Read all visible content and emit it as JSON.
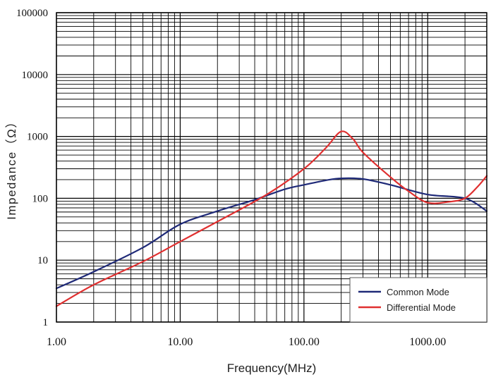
{
  "chart_data": {
    "type": "line",
    "title": "",
    "xlabel": "Frequency(MHz)",
    "ylabel": "Impedance（Ω）",
    "x_scale": "log",
    "y_scale": "log",
    "xlim": [
      1,
      3000
    ],
    "ylim": [
      1,
      100000
    ],
    "x_ticks": [
      1,
      10,
      100,
      1000
    ],
    "x_tick_labels": [
      "1.00",
      "10.00",
      "100.00",
      "1000.00"
    ],
    "y_ticks": [
      1,
      10,
      100,
      1000,
      10000,
      100000
    ],
    "y_tick_labels": [
      "1",
      "10",
      "100",
      "1000",
      "10000",
      "100000"
    ],
    "grid": true,
    "legend_position": "bottom-right",
    "series": [
      {
        "name": "Common Mode",
        "color": "#1f2a78",
        "x": [
          1,
          2,
          5,
          10,
          20,
          40,
          70,
          100,
          150,
          200,
          300,
          500,
          1000,
          2000,
          3000
        ],
        "y": [
          3.5,
          6.5,
          16,
          38,
          62,
          95,
          140,
          165,
          195,
          210,
          205,
          165,
          115,
          100,
          62
        ]
      },
      {
        "name": "Differential Mode",
        "color": "#e03030",
        "x": [
          1,
          2,
          5,
          10,
          20,
          50,
          100,
          150,
          200,
          250,
          300,
          500,
          700,
          1000,
          1500,
          2000,
          2500,
          3000
        ],
        "y": [
          1.8,
          4,
          9.5,
          20,
          42,
          115,
          300,
          650,
          1200,
          900,
          550,
          220,
          130,
          85,
          88,
          100,
          150,
          230
        ]
      }
    ]
  }
}
